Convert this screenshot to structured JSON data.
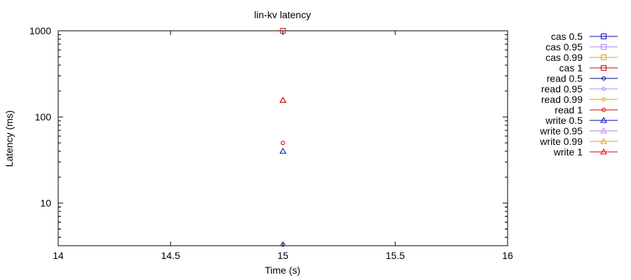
{
  "chart_data": {
    "type": "scatter",
    "title": "lin-kv latency",
    "xlabel": "Time (s)",
    "ylabel": "Latency (ms)",
    "xlim": [
      14,
      16
    ],
    "ylim": [
      3.2,
      1000
    ],
    "yscale": "log",
    "x_ticks": [
      "14",
      "14.5",
      "15",
      "15.5",
      "16"
    ],
    "y_ticks": [
      "10",
      "100",
      "1000"
    ],
    "grid": false,
    "legend_position": "outside-right",
    "series": [
      {
        "name": "cas 0.5",
        "color": "#0000c0",
        "marker": "square",
        "points": [
          [
            15,
            1000
          ]
        ]
      },
      {
        "name": "cas 0.95",
        "color": "#b080f0",
        "marker": "square",
        "points": [
          [
            15,
            1000
          ]
        ]
      },
      {
        "name": "cas 0.99",
        "color": "#e0a000",
        "marker": "square",
        "points": [
          [
            15,
            1000
          ]
        ]
      },
      {
        "name": "cas 1",
        "color": "#d00000",
        "marker": "square",
        "points": [
          [
            15,
            1000
          ]
        ]
      },
      {
        "name": "read 0.5",
        "color": "#000080",
        "marker": "circle",
        "points": [
          [
            15,
            3.3
          ]
        ]
      },
      {
        "name": "read 0.95",
        "color": "#b080f0",
        "marker": "circle",
        "points": [
          [
            15,
            50
          ]
        ]
      },
      {
        "name": "read 0.99",
        "color": "#e0a000",
        "marker": "circle",
        "points": [
          [
            15,
            50
          ]
        ]
      },
      {
        "name": "read 1",
        "color": "#d00000",
        "marker": "circle",
        "points": [
          [
            15,
            50
          ]
        ]
      },
      {
        "name": "write 0.5",
        "color": "#0000c0",
        "marker": "triangle",
        "points": [
          [
            15,
            40
          ]
        ]
      },
      {
        "name": "write 0.95",
        "color": "#b080f0",
        "marker": "triangle",
        "points": [
          [
            15,
            156
          ]
        ]
      },
      {
        "name": "write 0.99",
        "color": "#e0a000",
        "marker": "triangle",
        "points": [
          [
            15,
            156
          ]
        ]
      },
      {
        "name": "write 1",
        "color": "#d00000",
        "marker": "triangle",
        "points": [
          [
            15,
            156
          ]
        ]
      }
    ]
  }
}
